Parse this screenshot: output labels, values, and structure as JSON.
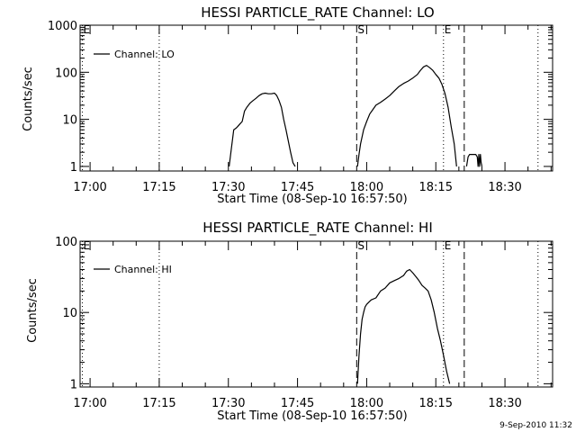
{
  "footer": {
    "timestamp": "9-Sep-2010 11:32"
  },
  "chart_data": [
    {
      "type": "line",
      "title": "HESSI PARTICLE_RATE Channel: LO",
      "xlabel": "Start Time (08-Sep-10 16:57:50)",
      "ylabel": "Counts/sec",
      "y_scale": "log",
      "xlim": [
        "16:57:50",
        "18:40:20"
      ],
      "ylim": [
        0.8,
        1000
      ],
      "x_tick_labels": [
        "17:00",
        "17:15",
        "17:30",
        "17:45",
        "18:00",
        "18:15",
        "18:30"
      ],
      "y_tick_labels": [
        "1",
        "10",
        "100",
        "1000"
      ],
      "y_tick_values": [
        1,
        10,
        100,
        1000
      ],
      "legend": {
        "label": "Channel: LO",
        "position": "top-left"
      },
      "markers": [
        {
          "label": "E",
          "time": "16:58:20",
          "style": "dotted"
        },
        {
          "label": "",
          "time": "17:15:00",
          "style": "dotted"
        },
        {
          "label": "S",
          "time": "17:57:50",
          "style": "dashed"
        },
        {
          "label": "E",
          "time": "18:16:40",
          "style": "dotted"
        },
        {
          "label": "",
          "time": "18:21:10",
          "style": "dashed"
        },
        {
          "label": "",
          "time": "18:37:10",
          "style": "dotted"
        }
      ],
      "series": [
        {
          "x": [
            "17:30:10",
            "17:30:40",
            "17:31:10",
            "17:31:40",
            "17:32:00",
            "17:32:30",
            "17:33:00",
            "17:33:30",
            "17:34:00",
            "17:34:40",
            "17:35:20",
            "17:36:00",
            "17:36:40",
            "17:37:20",
            "17:38:00",
            "17:38:40",
            "17:39:20",
            "17:40:00",
            "17:40:30",
            "17:41:00",
            "17:41:30",
            "17:42:00",
            "17:42:30",
            "17:43:00",
            "17:43:30",
            "17:44:00",
            "17:44:30"
          ],
          "y": [
            1,
            2.5,
            6,
            6.5,
            7,
            8,
            9,
            15,
            18,
            22,
            25,
            28,
            32,
            35,
            36,
            35,
            35,
            36,
            32,
            25,
            18,
            10,
            6,
            3.5,
            2,
            1.2,
            1
          ]
        },
        {
          "x": [
            "17:58:00",
            "17:58:20",
            "17:58:40",
            "17:59:20",
            "18:00:00",
            "18:00:40",
            "18:01:20",
            "18:02:00",
            "18:03:00",
            "18:04:00",
            "18:05:00",
            "18:06:00",
            "18:07:00",
            "18:08:00",
            "18:09:00",
            "18:10:00",
            "18:11:00",
            "18:11:40",
            "18:12:20",
            "18:13:00",
            "18:13:40",
            "18:14:20",
            "18:15:00",
            "18:15:40",
            "18:16:20",
            "18:17:00",
            "18:17:40",
            "18:18:20",
            "18:19:00",
            "18:19:30"
          ],
          "y": [
            1,
            1.8,
            3,
            6,
            9,
            13,
            16,
            20,
            23,
            27,
            32,
            40,
            50,
            58,
            65,
            75,
            90,
            110,
            130,
            140,
            125,
            110,
            90,
            75,
            55,
            35,
            18,
            7,
            3,
            1
          ]
        },
        {
          "x": [
            "18:21:40",
            "18:22:00",
            "18:22:20",
            "18:23:40",
            "18:24:00",
            "18:24:10",
            "18:24:20",
            "18:24:30",
            "18:24:40",
            "18:24:50",
            "18:25:00"
          ],
          "y": [
            1,
            1.6,
            1.8,
            1.8,
            1.6,
            1,
            1.8,
            1,
            1.8,
            1.2,
            1
          ]
        }
      ]
    },
    {
      "type": "line",
      "title": "HESSI PARTICLE_RATE Channel: HI",
      "xlabel": "Start Time (08-Sep-10 16:57:50)",
      "ylabel": "Counts/sec",
      "y_scale": "log",
      "xlim": [
        "16:57:50",
        "18:40:20"
      ],
      "ylim": [
        0.9,
        100
      ],
      "x_tick_labels": [
        "17:00",
        "17:15",
        "17:30",
        "17:45",
        "18:00",
        "18:15",
        "18:30"
      ],
      "y_tick_labels": [
        "1",
        "10",
        "100"
      ],
      "y_tick_values": [
        1,
        10,
        100
      ],
      "legend": {
        "label": "Channel: HI",
        "position": "top-left"
      },
      "markers": [
        {
          "label": "E",
          "time": "16:58:20",
          "style": "dotted"
        },
        {
          "label": "",
          "time": "17:15:00",
          "style": "dotted"
        },
        {
          "label": "S",
          "time": "17:57:50",
          "style": "dashed"
        },
        {
          "label": "E",
          "time": "18:16:40",
          "style": "dotted"
        },
        {
          "label": "",
          "time": "18:21:10",
          "style": "dashed"
        },
        {
          "label": "",
          "time": "18:37:10",
          "style": "dotted"
        }
      ],
      "series": [
        {
          "x": [
            "17:58:00",
            "17:58:20",
            "17:58:40",
            "17:59:00",
            "17:59:20",
            "17:59:40",
            "18:00:00",
            "18:00:30",
            "18:01:00",
            "18:02:00",
            "18:03:00",
            "18:04:00",
            "18:05:00",
            "18:06:00",
            "18:07:00",
            "18:08:00",
            "18:08:40",
            "18:09:20",
            "18:10:00",
            "18:10:40",
            "18:11:20",
            "18:12:00",
            "18:12:40",
            "18:13:20",
            "18:14:00",
            "18:14:40",
            "18:15:20",
            "18:16:00",
            "18:16:40",
            "18:17:20",
            "18:18:00"
          ],
          "y": [
            1,
            2.5,
            5,
            8,
            10,
            12,
            13,
            14,
            15,
            16,
            20,
            22,
            26,
            28,
            30,
            33,
            38,
            40,
            36,
            32,
            28,
            24,
            22,
            20,
            15,
            10,
            6,
            4,
            2.5,
            1.5,
            1
          ]
        }
      ]
    }
  ]
}
